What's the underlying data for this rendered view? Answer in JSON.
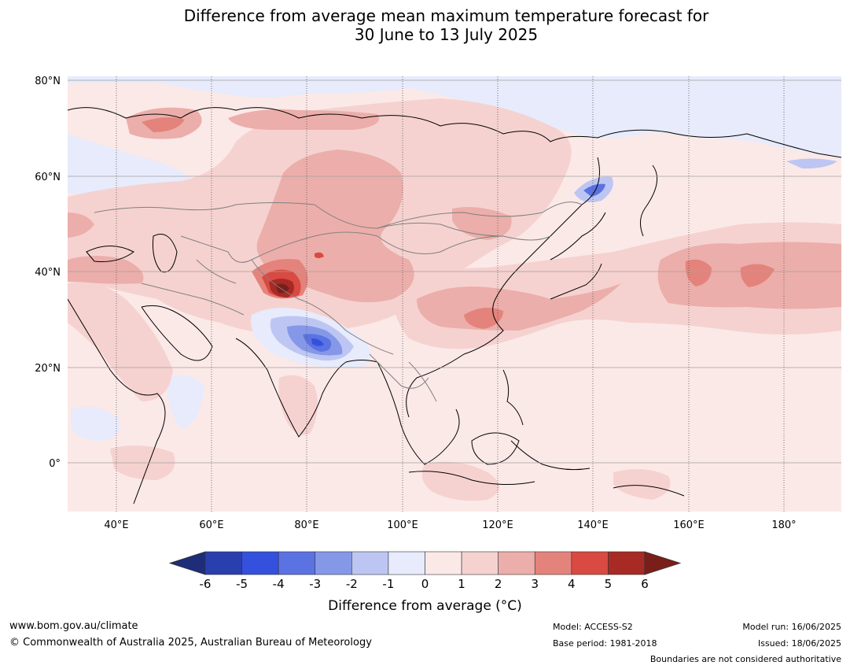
{
  "title": {
    "line1": "Difference from average mean maximum temperature forecast for",
    "line2": "30 June to 13 July 2025"
  },
  "map": {
    "region": "Asia",
    "lat_labels": [
      "80°N",
      "60°N",
      "40°N",
      "20°N",
      "0°"
    ],
    "lon_labels": [
      "40°E",
      "60°E",
      "80°E",
      "100°E",
      "120°E",
      "140°E",
      "160°E",
      "180°"
    ]
  },
  "colorbar": {
    "ticks": [
      "-6",
      "-5",
      "-4",
      "-3",
      "-2",
      "-1",
      "0",
      "1",
      "2",
      "3",
      "4",
      "5",
      "6"
    ],
    "colors": [
      "#1d2d7a",
      "#2a3fae",
      "#3451de",
      "#5b72e2",
      "#8598e8",
      "#bdc6f3",
      "#e7ebfb",
      "#fbe9e8",
      "#f5d2d0",
      "#ecaeaa",
      "#e4837c",
      "#d84a42",
      "#a82a24",
      "#7a1e1a"
    ],
    "title": "Difference from average (°C)"
  },
  "footer": {
    "url": "www.bom.gov.au/climate",
    "copyright": "© Commonwealth of Australia 2025, Australian Bureau of Meteorology",
    "model": "Model: ACCESS-S2",
    "base_period": "Base period: 1981-2018",
    "model_run": "Model run: 16/06/2025",
    "issued": "Issued: 18/06/2025",
    "disclaimer": "Boundaries are not considered authoritative"
  }
}
